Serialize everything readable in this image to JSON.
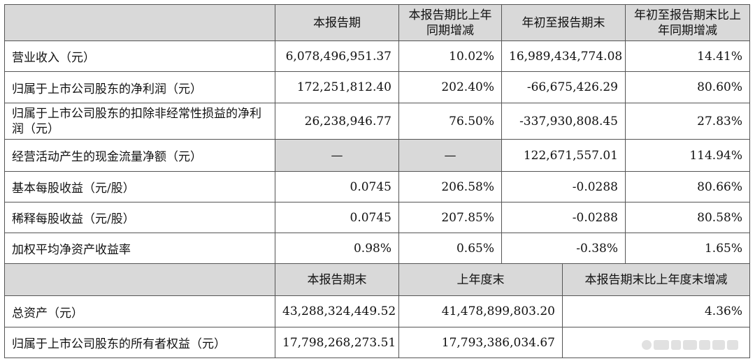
{
  "header1": {
    "c1": "本报告期",
    "c2": "本报告期比上年同期增减",
    "c3": "年初至报告期末",
    "c4": "年初至报告期末比上年同期增减"
  },
  "rows": [
    {
      "label": "营业收入（元）",
      "v1": "6,078,496,951.37",
      "v2": "10.02%",
      "v3": "16,989,434,774.08",
      "v4": "14.41%"
    },
    {
      "label": "归属于上市公司股东的净利润（元）",
      "v1": "172,251,812.40",
      "v2": "202.40%",
      "v3": "-66,675,426.29",
      "v4": "80.60%"
    },
    {
      "label": "归属于上市公司股东的扣除非经常性损益的净利润（元）",
      "v1": "26,238,946.77",
      "v2": "76.50%",
      "v3": "-337,930,808.45",
      "v4": "27.83%"
    },
    {
      "label": "经营活动产生的现金流量净额（元）",
      "v1": "—",
      "v2": "—",
      "v3": "122,671,557.01",
      "v4": "114.94%"
    },
    {
      "label": "基本每股收益（元/股）",
      "v1": "0.0745",
      "v2": "206.58%",
      "v3": "-0.0288",
      "v4": "80.66%"
    },
    {
      "label": "稀释每股收益（元/股）",
      "v1": "0.0745",
      "v2": "207.85%",
      "v3": "-0.0288",
      "v4": "80.58%"
    },
    {
      "label": "加权平均净资产收益率",
      "v1": "0.98%",
      "v2": "0.65%",
      "v3": "-0.38%",
      "v4": "1.65%"
    }
  ],
  "header2": {
    "c1": "本报告期末",
    "c2": "上年度末",
    "c3": "本报告期末比上年度末增减"
  },
  "rows2": [
    {
      "label": "总资产（元）",
      "v1": "43,288,324,449.52",
      "v2": "41,478,899,803.20",
      "v3": "4.36%"
    },
    {
      "label": "归属于上市公司股东的所有者权益（元）",
      "v1": "17,798,268,273.51",
      "v2": "17,793,386,034.67",
      "v3": ""
    }
  ]
}
